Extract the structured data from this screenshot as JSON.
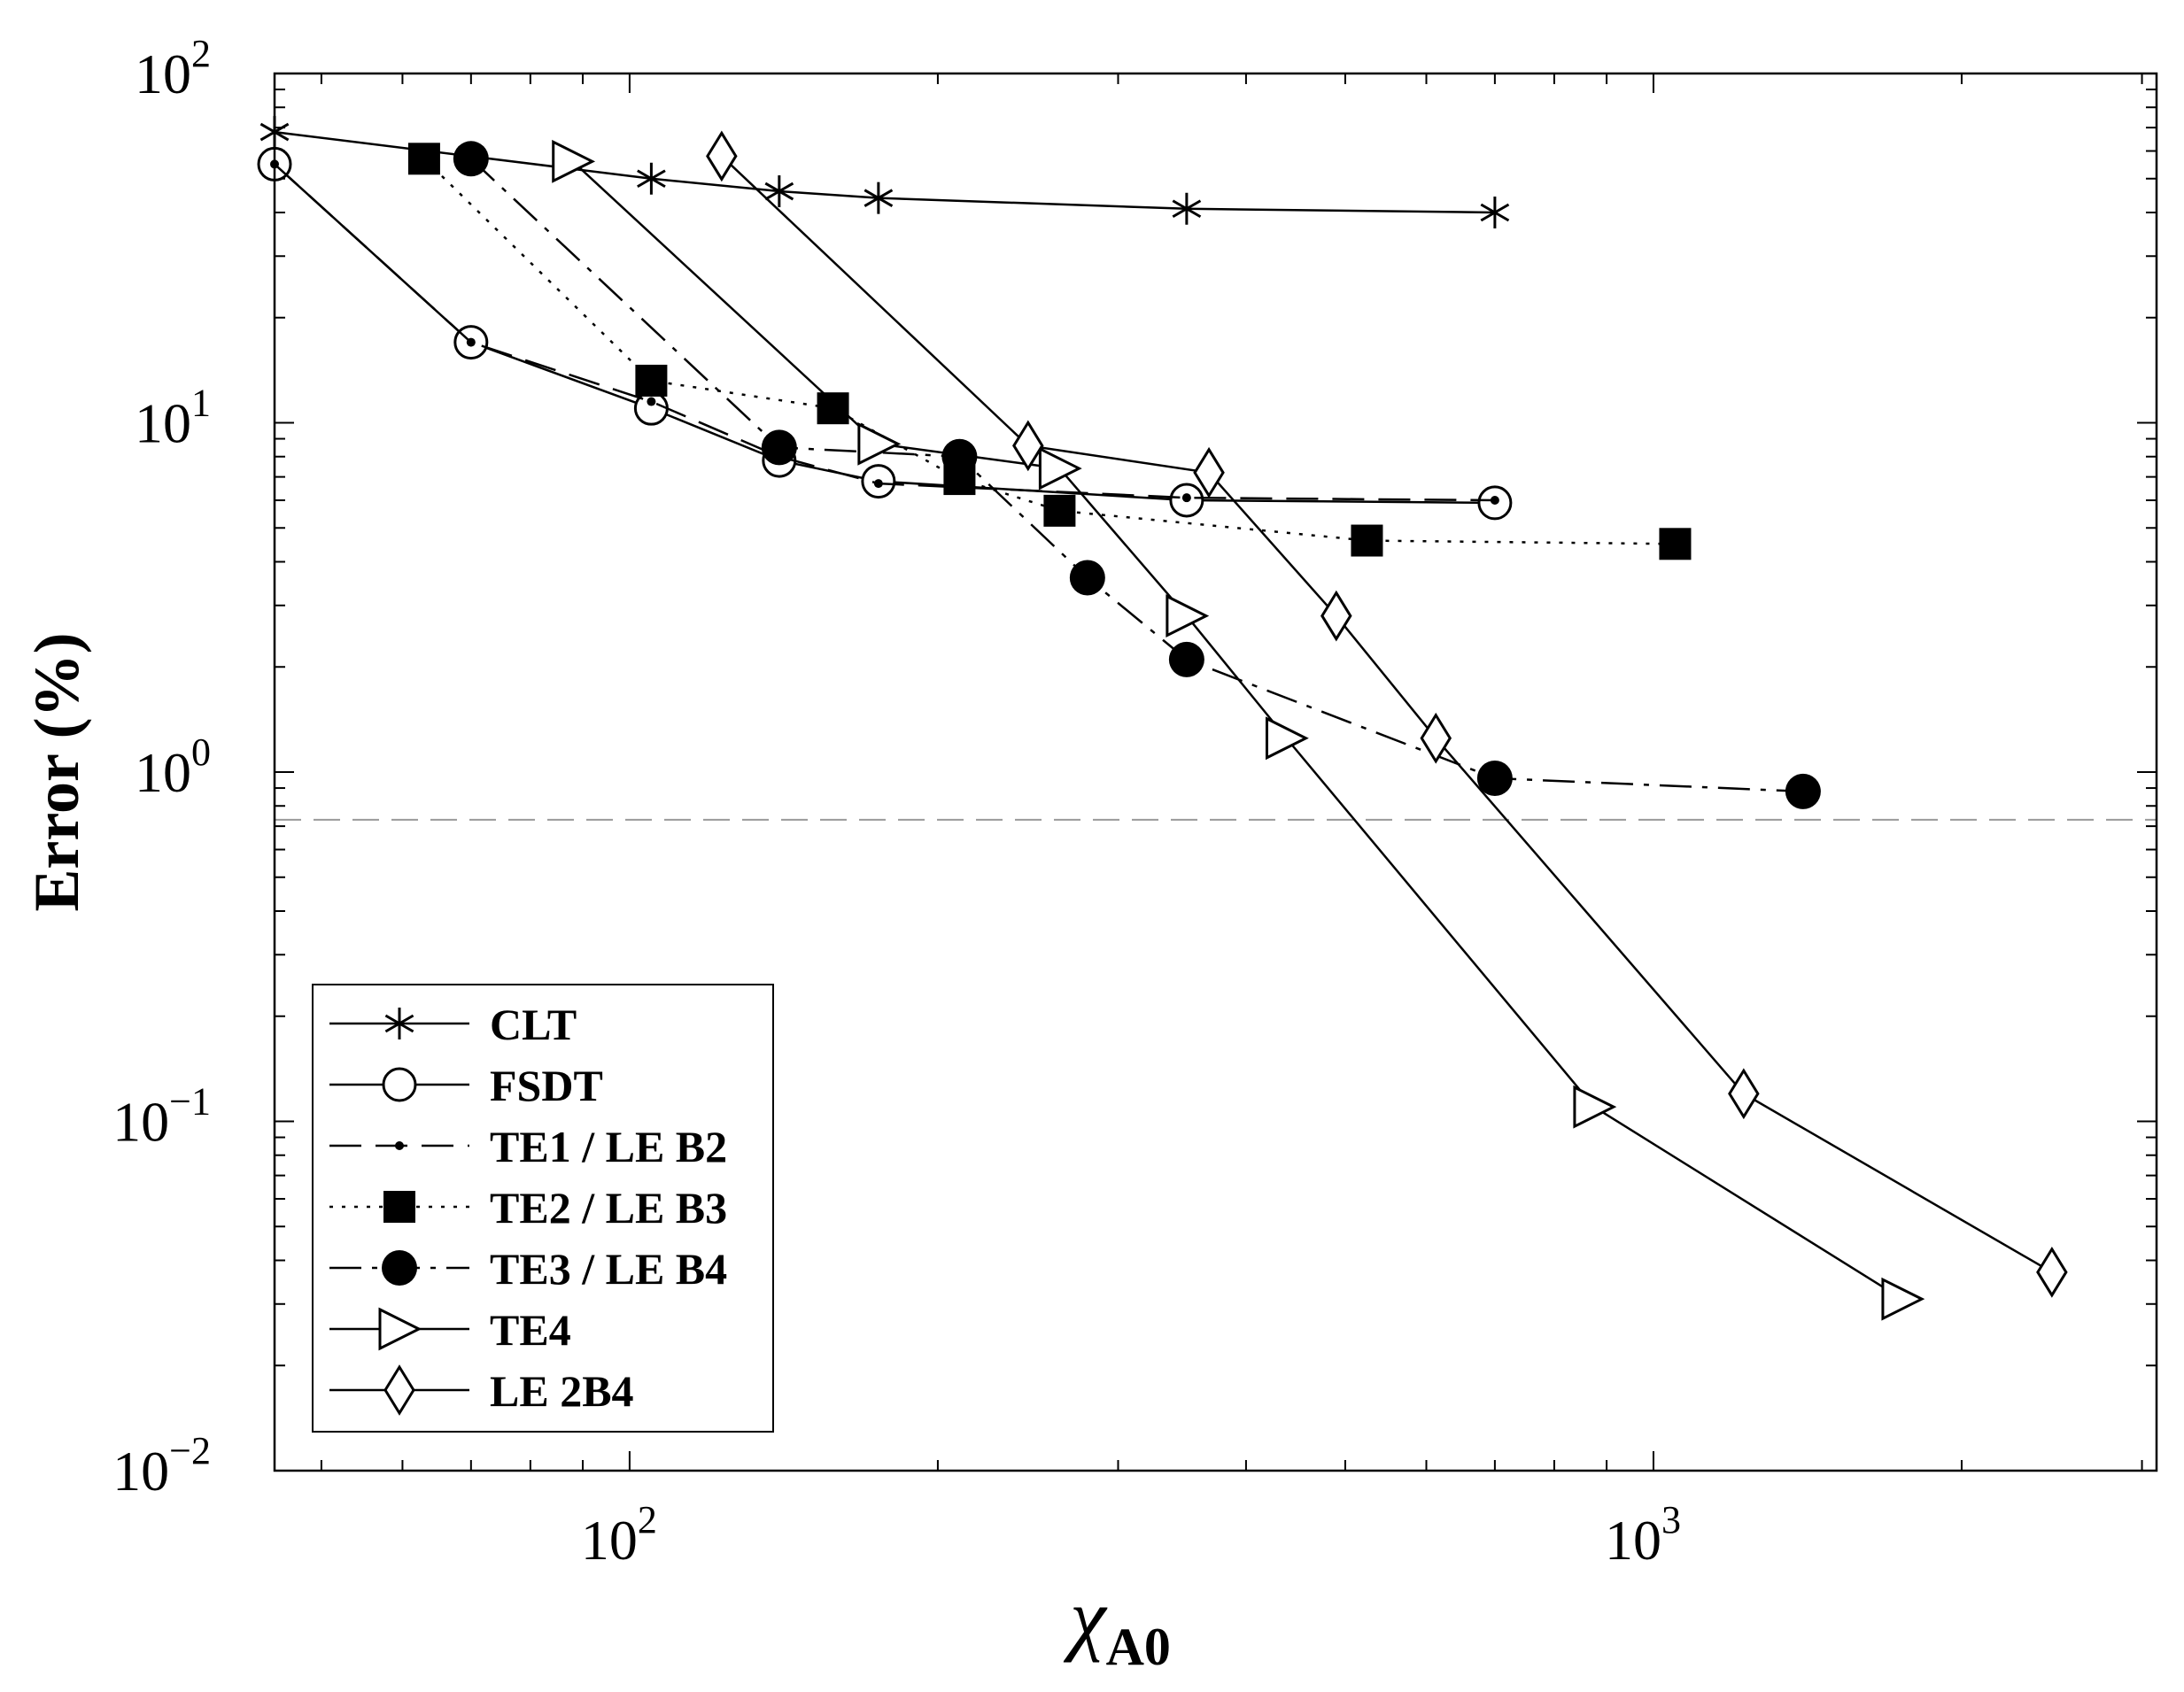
{
  "chart_data": {
    "type": "line",
    "title": "",
    "xlabel": "χ",
    "xlabel_sub": "A0",
    "ylabel": "Error (%)",
    "xscale": "log",
    "yscale": "log",
    "xlim": [
      45,
      3100
    ],
    "ylim": [
      0.01,
      100
    ],
    "x_tick_labels": [
      {
        "value": 100,
        "base": "10",
        "exp": "2"
      },
      {
        "value": 1000,
        "base": "10",
        "exp": "3"
      }
    ],
    "y_tick_labels": [
      {
        "value": 0.01,
        "base": "10",
        "exp": "−2"
      },
      {
        "value": 0.1,
        "base": "10",
        "exp": "−1"
      },
      {
        "value": 1,
        "base": "10",
        "exp": "0"
      },
      {
        "value": 10,
        "base": "10",
        "exp": "1"
      },
      {
        "value": 100,
        "base": "10",
        "exp": "2"
      }
    ],
    "reference_line": {
      "y": 0.73,
      "style": "dashed",
      "color": "#9a9a9a"
    },
    "legend_position": "bottom-left",
    "series": [
      {
        "name": "CLT",
        "marker": "asterisk",
        "line": "solid",
        "x": [
          45,
          105,
          140,
          175,
          350,
          700
        ],
        "y": [
          68,
          50,
          46,
          44,
          41,
          40
        ]
      },
      {
        "name": "FSDT",
        "marker": "circle-open",
        "line": "solid",
        "x": [
          45,
          70,
          105,
          140,
          175,
          350,
          700
        ],
        "y": [
          55,
          17,
          11,
          7.8,
          6.8,
          6.0,
          5.9
        ]
      },
      {
        "name": "TE1 / LE B2",
        "marker": "dot",
        "line": "dashed",
        "x": [
          45,
          70,
          105,
          140,
          175,
          350,
          700
        ],
        "y": [
          55,
          17,
          11.5,
          8.0,
          6.7,
          6.1,
          6.0
        ]
      },
      {
        "name": "TE2 / LE B3",
        "marker": "square-filled",
        "line": "dotted",
        "x": [
          63,
          105,
          158,
          210,
          263,
          525,
          1050
        ],
        "y": [
          57,
          13.2,
          11.0,
          6.9,
          5.6,
          4.6,
          4.5
        ]
      },
      {
        "name": "TE3 / LE B4",
        "marker": "circle-filled",
        "line": "dashdot",
        "x": [
          70,
          140,
          210,
          280,
          350,
          700,
          1400
        ],
        "y": [
          57,
          8.5,
          8.0,
          3.6,
          2.1,
          0.96,
          0.88
        ]
      },
      {
        "name": "TE4",
        "marker": "triangle-right-open",
        "line": "solid",
        "x": [
          88,
          175,
          263,
          350,
          438,
          875,
          1750
        ],
        "y": [
          56,
          8.7,
          7.4,
          2.8,
          1.25,
          0.11,
          0.031
        ]
      },
      {
        "name": "LE 2B4",
        "marker": "diamond-open",
        "line": "solid",
        "x": [
          123,
          245,
          368,
          490,
          613,
          1225,
          2450
        ],
        "y": [
          58,
          8.6,
          7.2,
          2.8,
          1.25,
          0.12,
          0.037
        ]
      }
    ]
  }
}
